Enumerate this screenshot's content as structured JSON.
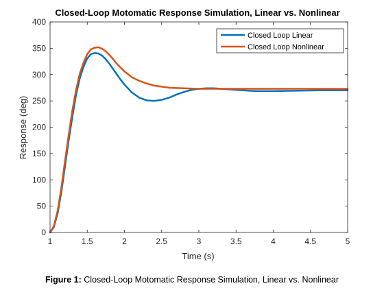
{
  "chart_data": {
    "type": "line",
    "title": "Closed-Loop Motomatic Response Simulation, Linear vs. Nonlinear",
    "xlabel": "Time (s)",
    "ylabel": "Response (deg)",
    "xlim": [
      1,
      5
    ],
    "ylim": [
      0,
      400
    ],
    "xticks": [
      1,
      1.5,
      2,
      2.5,
      3,
      3.5,
      4,
      4.5,
      5
    ],
    "xtick_labels": [
      "1",
      "1.5",
      "2",
      "2.5",
      "3",
      "3.5",
      "4",
      "4.5",
      "5"
    ],
    "yticks": [
      0,
      50,
      100,
      150,
      200,
      250,
      300,
      350,
      400
    ],
    "ytick_labels": [
      "0",
      "50",
      "100",
      "150",
      "200",
      "250",
      "300",
      "350",
      "400"
    ],
    "grid": false,
    "legend_position": "top-right",
    "series": [
      {
        "name": "Closed Loop Linear",
        "color": "#0072BD",
        "x": [
          1.0,
          1.05,
          1.1,
          1.15,
          1.2,
          1.25,
          1.3,
          1.35,
          1.4,
          1.45,
          1.5,
          1.55,
          1.6,
          1.65,
          1.7,
          1.75,
          1.8,
          1.85,
          1.9,
          1.95,
          2.0,
          2.1,
          2.2,
          2.3,
          2.4,
          2.5,
          2.6,
          2.7,
          2.8,
          2.9,
          3.0,
          3.1,
          3.2,
          3.3,
          3.4,
          3.5,
          3.6,
          3.7,
          3.8,
          3.9,
          4.0,
          4.2,
          4.4,
          4.6,
          4.8,
          5.0
        ],
        "y": [
          0,
          10,
          35,
          75,
          125,
          175,
          220,
          262,
          293,
          315,
          331,
          339,
          341,
          340,
          336,
          329,
          320,
          310,
          300,
          290,
          281,
          266,
          256,
          251,
          250,
          252,
          256,
          262,
          267,
          271,
          273,
          274,
          274,
          273,
          272,
          271,
          270,
          269,
          268.5,
          268.5,
          268.5,
          269,
          269.5,
          270,
          270,
          270
        ]
      },
      {
        "name": "Closed Loop Nonlinear",
        "color": "#D95319",
        "x": [
          1.0,
          1.05,
          1.1,
          1.15,
          1.2,
          1.25,
          1.3,
          1.35,
          1.4,
          1.45,
          1.5,
          1.55,
          1.6,
          1.65,
          1.7,
          1.75,
          1.8,
          1.85,
          1.9,
          1.95,
          2.0,
          2.1,
          2.2,
          2.3,
          2.4,
          2.5,
          2.6,
          2.8,
          3.0,
          3.2,
          3.4,
          3.6,
          3.8,
          4.0,
          4.5,
          5.0
        ],
        "y": [
          0,
          12,
          40,
          83,
          135,
          185,
          232,
          271,
          302,
          323,
          339,
          348,
          351,
          352,
          349,
          344,
          337,
          329,
          320,
          313,
          306,
          295,
          288,
          283,
          279,
          277,
          275,
          274,
          273,
          273,
          273,
          273,
          273,
          273,
          273,
          273
        ]
      }
    ]
  },
  "caption": {
    "label": "Figure 1:",
    "text": "Closed-Loop Motomatic Response Simulation, Linear vs. Nonlinear"
  }
}
